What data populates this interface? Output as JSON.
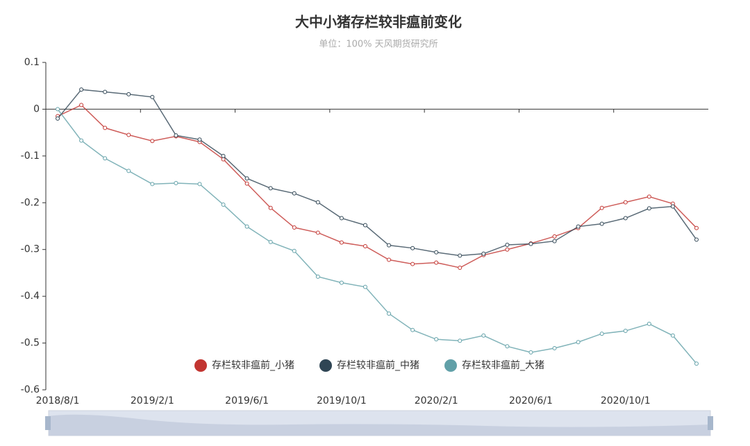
{
  "chart_data": {
    "type": "line",
    "title": "大中小猪存栏较非瘟前变化",
    "subtitle": "单位：100%  天风期货研究所",
    "categories": [
      "2018/8/1",
      null,
      null,
      null,
      "2019/2/1",
      null,
      null,
      null,
      "2019/6/1",
      null,
      null,
      null,
      "2019/10/1",
      null,
      null,
      null,
      "2020/2/1",
      null,
      null,
      null,
      "2020/6/1",
      null,
      null,
      null,
      "2020/10/1",
      null,
      null,
      null
    ],
    "series": [
      {
        "name": "存栏较非瘟前_小猪",
        "color": "#c23531",
        "values": [
          -0.015,
          0.009,
          -0.04,
          -0.055,
          -0.068,
          -0.058,
          -0.07,
          -0.107,
          -0.159,
          -0.211,
          -0.253,
          -0.264,
          -0.285,
          -0.293,
          -0.322,
          -0.331,
          -0.328,
          -0.339,
          -0.312,
          -0.3,
          -0.287,
          -0.272,
          -0.254,
          -0.211,
          -0.199,
          -0.187,
          -0.202,
          -0.254
        ]
      },
      {
        "name": "存栏较非瘟前_中猪",
        "color": "#2f4554",
        "values": [
          -0.02,
          0.042,
          0.037,
          0.032,
          0.026,
          -0.056,
          -0.065,
          -0.1,
          -0.148,
          -0.169,
          -0.18,
          -0.199,
          -0.233,
          -0.248,
          -0.291,
          -0.297,
          -0.306,
          -0.313,
          -0.309,
          -0.29,
          -0.288,
          -0.282,
          -0.251,
          -0.245,
          -0.233,
          -0.212,
          -0.208,
          -0.279
        ]
      },
      {
        "name": "存栏较非瘟前_大猪",
        "color": "#61a0a8",
        "values": [
          0,
          -0.067,
          -0.105,
          -0.132,
          -0.16,
          -0.158,
          -0.16,
          -0.204,
          -0.251,
          -0.284,
          -0.303,
          -0.358,
          -0.371,
          -0.38,
          -0.437,
          -0.472,
          -0.492,
          -0.495,
          -0.484,
          -0.507,
          -0.52,
          -0.511,
          -0.498,
          -0.48,
          -0.474,
          -0.459,
          -0.484,
          -0.544
        ]
      }
    ],
    "ylim": [
      -0.6,
      0.1
    ],
    "yticks": [
      -0.6,
      -0.5,
      -0.4,
      -0.3,
      -0.2,
      -0.1,
      0,
      0.1
    ],
    "legend": "bottom"
  }
}
